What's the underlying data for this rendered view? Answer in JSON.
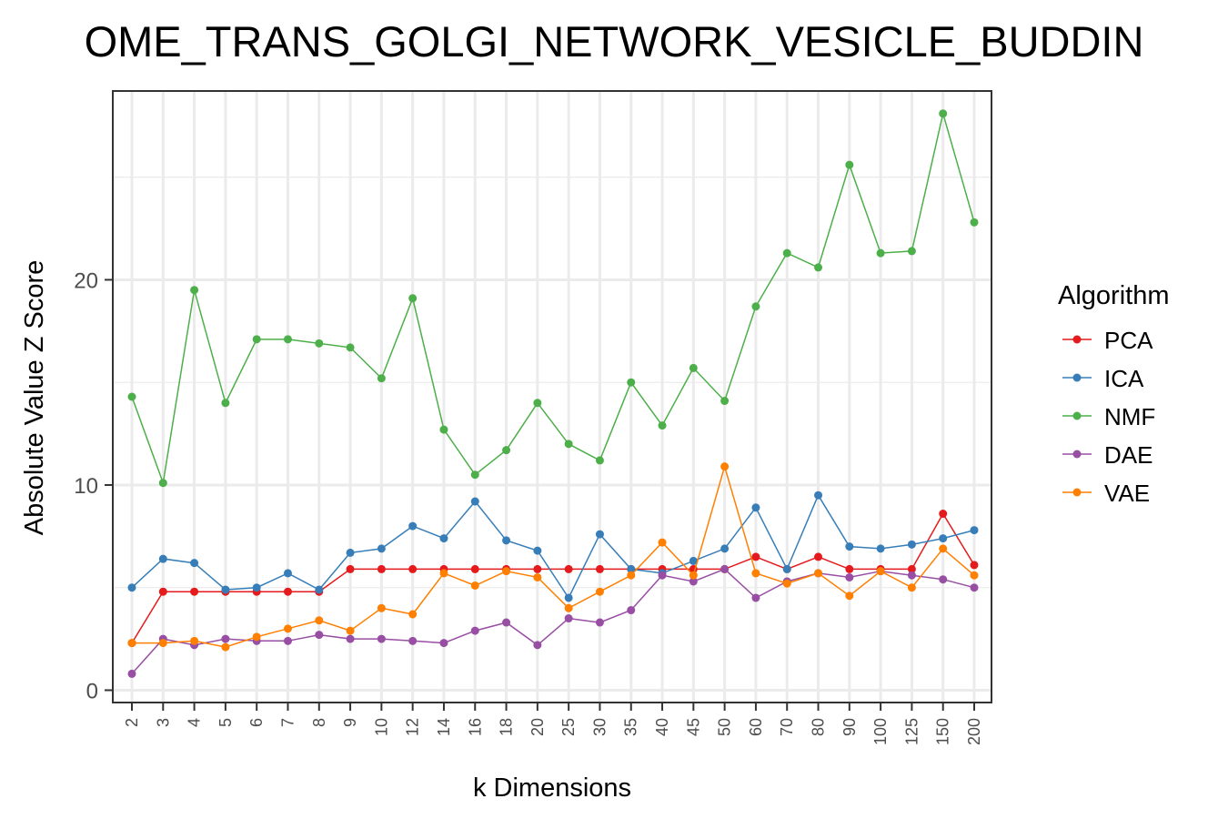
{
  "chart_data": {
    "type": "line",
    "title": "OME_TRANS_GOLGI_NETWORK_VESICLE_BUDDIN",
    "xlabel": "k Dimensions",
    "ylabel": "Absolute Value Z Score",
    "x": [
      "2",
      "3",
      "4",
      "5",
      "6",
      "7",
      "8",
      "9",
      "10",
      "12",
      "14",
      "16",
      "18",
      "20",
      "25",
      "30",
      "35",
      "40",
      "45",
      "50",
      "60",
      "70",
      "80",
      "90",
      "100",
      "125",
      "150",
      "200"
    ],
    "yticks": [
      0,
      10,
      20
    ],
    "ylim": [
      -0.6,
      29.2
    ],
    "grid": true,
    "legend": {
      "title": "Algorithm",
      "position": "right"
    },
    "series": [
      {
        "name": "PCA",
        "color": "#E41A1C",
        "values": [
          2.3,
          4.8,
          4.8,
          4.8,
          4.8,
          4.8,
          4.8,
          5.9,
          5.9,
          5.9,
          5.9,
          5.9,
          5.9,
          5.9,
          5.9,
          5.9,
          5.9,
          5.9,
          5.9,
          5.9,
          6.5,
          5.9,
          6.5,
          5.9,
          5.9,
          5.9,
          8.6,
          6.1
        ]
      },
      {
        "name": "ICA",
        "color": "#377EB8",
        "values": [
          5.0,
          6.4,
          6.2,
          4.9,
          5.0,
          5.7,
          4.9,
          6.7,
          6.9,
          8.0,
          7.4,
          9.2,
          7.3,
          6.8,
          4.5,
          7.6,
          5.9,
          5.7,
          6.3,
          6.9,
          8.9,
          5.9,
          9.5,
          7.0,
          6.9,
          7.1,
          7.4,
          7.8
        ]
      },
      {
        "name": "NMF",
        "color": "#4DAF4A",
        "values": [
          14.3,
          10.1,
          19.5,
          14.0,
          17.1,
          17.1,
          16.9,
          16.7,
          15.2,
          19.1,
          12.7,
          10.5,
          11.7,
          14.0,
          12.0,
          11.2,
          15.0,
          12.9,
          15.7,
          14.1,
          18.7,
          21.3,
          20.6,
          25.6,
          21.3,
          21.4,
          28.1,
          22.8
        ]
      },
      {
        "name": "DAE",
        "color": "#984EA3",
        "values": [
          0.8,
          2.5,
          2.2,
          2.5,
          2.4,
          2.4,
          2.7,
          2.5,
          2.5,
          2.4,
          2.3,
          2.9,
          3.3,
          2.2,
          3.5,
          3.3,
          3.9,
          5.6,
          5.3,
          5.9,
          4.5,
          5.3,
          5.7,
          5.5,
          5.8,
          5.6,
          5.4,
          5.0
        ]
      },
      {
        "name": "VAE",
        "color": "#FF7F00",
        "values": [
          2.3,
          2.3,
          2.4,
          2.1,
          2.6,
          3.0,
          3.4,
          2.9,
          4.0,
          3.7,
          5.7,
          5.1,
          5.8,
          5.5,
          4.0,
          4.8,
          5.6,
          7.2,
          5.6,
          10.9,
          5.7,
          5.2,
          5.7,
          4.6,
          5.8,
          5.0,
          6.9,
          5.6
        ]
      }
    ]
  }
}
